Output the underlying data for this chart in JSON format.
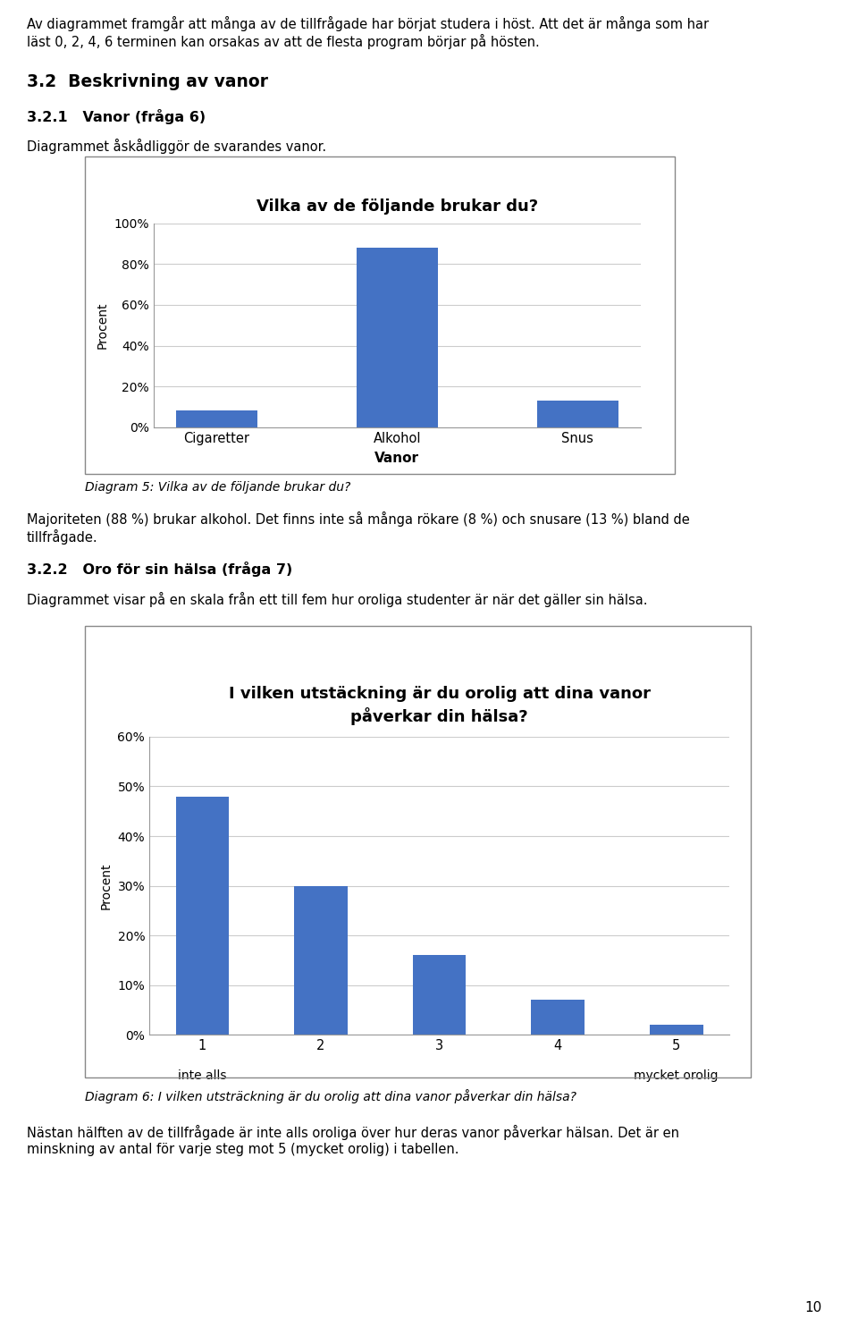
{
  "page_bg": "#ffffff",
  "text_color": "#000000",
  "intro_text_line1": "Av diagrammet framgår att många av de tillfrågade har börjat studera i höst. Att det är många som har",
  "intro_text_line2": "läst 0, 2, 4, 6 terminen kan orsakas av att de flesta program börjar på hösten.",
  "section_title": "3.2  Beskrivning av vanor",
  "subsection1_title": "3.2.1   Vanor (fråga 6)",
  "subsection1_desc": "Diagrammet åskådliggör de svarandes vanor.",
  "chart1_title": "Vilka av de följande brukar du?",
  "chart1_categories": [
    "Cigaretter",
    "Alkohol",
    "Snus"
  ],
  "chart1_values": [
    8,
    88,
    13
  ],
  "chart1_xlabel": "Vanor",
  "chart1_ylabel": "Procent",
  "chart1_yticks": [
    0,
    20,
    40,
    60,
    80,
    100
  ],
  "chart1_ytick_labels": [
    "0%",
    "20%",
    "40%",
    "60%",
    "80%",
    "100%"
  ],
  "chart1_ylim": [
    0,
    100
  ],
  "chart1_bar_color": "#4472C4",
  "chart1_caption": "Diagram 5: Vilka av de följande brukar du?",
  "body_text1_line1": "Majoriteten (88 %) brukar alkohol. Det finns inte så många rökare (8 %) och snusare (13 %) bland de",
  "body_text1_line2": "tillfrågade.",
  "subsection2_title": "3.2.2   Oro för sin hälsa (fråga 7)",
  "subsection2_desc": "Diagrammet visar på en skala från ett till fem hur oroliga studenter är när det gäller sin hälsa.",
  "chart2_title_line1": "I vilken utstäckning är du orolig att dina vanor",
  "chart2_title_line2": "påverkar din hälsa?",
  "chart2_categories": [
    "1",
    "2",
    "3",
    "4",
    "5"
  ],
  "chart2_sublabels": [
    "inte alls",
    "",
    "",
    "",
    "mycket orolig"
  ],
  "chart2_values": [
    48,
    30,
    16,
    7,
    2
  ],
  "chart2_ylabel": "Procent",
  "chart2_yticks": [
    0,
    10,
    20,
    30,
    40,
    50,
    60
  ],
  "chart2_ytick_labels": [
    "0%",
    "10%",
    "20%",
    "30%",
    "40%",
    "50%",
    "60%"
  ],
  "chart2_ylim": [
    0,
    60
  ],
  "chart2_bar_color": "#4472C4",
  "chart2_caption": "Diagram 6: I vilken utsträckning är du orolig att dina vanor påverkar din hälsa?",
  "footer_text1_line1": "Nästan hälften av de tillfrågade är inte alls oroliga över hur deras vanor påverkar hälsan. Det är en",
  "footer_text1_line2": "minskning av antal för varje steg mot 5 (mycket orolig) i tabellen.",
  "page_number": "10"
}
